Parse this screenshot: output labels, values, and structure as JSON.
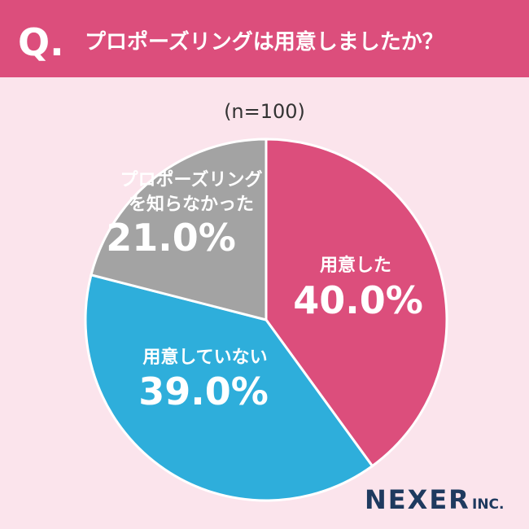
{
  "chart_data": {
    "type": "pie",
    "question_label": "Q.",
    "title": "プロポーズリングは用意しましたか？",
    "subtitle": "(n=100)",
    "categories": [
      "用意した",
      "用意していない",
      "プロポーズリング\nを知らなかった"
    ],
    "values": [
      40,
      39,
      21
    ],
    "value_labels": [
      "40.0%",
      "39.0%",
      "21.0%"
    ],
    "colors": [
      "#dc4e7c",
      "#2eaedb",
      "#a3a3a3"
    ],
    "brand": {
      "name": "NEXER",
      "suffix": "INC."
    }
  }
}
